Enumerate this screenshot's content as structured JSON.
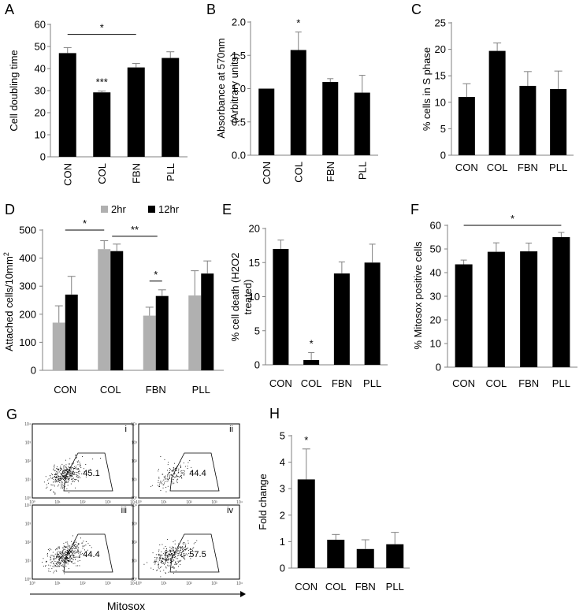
{
  "chart_data": [
    {
      "panel": "A",
      "type": "bar",
      "categories": [
        "CON",
        "COL",
        "FBN",
        "PLL"
      ],
      "values": [
        47,
        29.2,
        40.5,
        44.8
      ],
      "errors": [
        2.5,
        0.6,
        1.8,
        2.8
      ],
      "ylabel": "Cell doubling time",
      "ylim": [
        0,
        60
      ],
      "yticks": [
        "0",
        "10",
        "20",
        "30",
        "40",
        "50",
        "60"
      ],
      "xtick_rotation": -90,
      "annotations": [
        {
          "text": "***",
          "category": 1
        }
      ],
      "brackets": [
        {
          "text": "*",
          "from": 0,
          "to": 2
        }
      ]
    },
    {
      "panel": "B",
      "type": "bar",
      "categories": [
        "CON",
        "COL",
        "FBN",
        "PLL"
      ],
      "values": [
        1.0,
        1.58,
        1.1,
        0.94
      ],
      "errors": [
        0,
        0.27,
        0.05,
        0.26
      ],
      "ylabel": "Absorbance at 570nm",
      "ylabel2": "(Arbitrary units)",
      "ylim": [
        0,
        2.0
      ],
      "yticks": [
        "0.0",
        "0.5",
        "1.0",
        "1.5",
        "2.0"
      ],
      "xtick_rotation": -90,
      "annotations": [
        {
          "text": "*",
          "category": 1
        }
      ],
      "brackets": []
    },
    {
      "panel": "C",
      "type": "bar",
      "categories": [
        "CON",
        "COL",
        "FBN",
        "PLL"
      ],
      "values": [
        11,
        19.7,
        13.1,
        12.5
      ],
      "errors": [
        2.5,
        1.5,
        2.7,
        3.4
      ],
      "ylabel": "% cells in S phase",
      "ylim": [
        0,
        25
      ],
      "yticks": [
        "0",
        "5",
        "10",
        "15",
        "20",
        "25"
      ],
      "xtick_rotation": 0,
      "annotations": [],
      "brackets": []
    },
    {
      "panel": "D",
      "type": "bar",
      "categories": [
        "CON",
        "COL",
        "FBN",
        "PLL"
      ],
      "series": [
        {
          "name": "2hr",
          "color": "#b0b0b0",
          "values": [
            170,
            432,
            195,
            267
          ],
          "errors": [
            60,
            30,
            30,
            88
          ]
        },
        {
          "name": "12hr",
          "color": "#000000",
          "values": [
            270,
            425,
            265,
            345
          ],
          "errors": [
            65,
            25,
            22,
            45
          ]
        }
      ],
      "ylabel": "Attached cells/10mm",
      "ylabel_sup": "2",
      "ylim": [
        0,
        500
      ],
      "yticks": [
        "0",
        "100",
        "200",
        "300",
        "400",
        "500"
      ],
      "xtick_rotation": 0,
      "annotations": [],
      "brackets": [
        {
          "text": "*",
          "from": 0,
          "to": 1,
          "level": 500
        },
        {
          "text": "**",
          "from": 1,
          "to": 2,
          "level": 478
        },
        {
          "text": "*",
          "from": 2,
          "to": 2,
          "level": 318,
          "within": true
        }
      ]
    },
    {
      "panel": "E",
      "type": "bar",
      "categories": [
        "CON",
        "COL",
        "FBN",
        "PLL"
      ],
      "values": [
        17,
        0.7,
        13.4,
        15
      ],
      "errors": [
        1.3,
        1.1,
        1.7,
        2.7
      ],
      "ylabel": "% cell death (H2O2",
      "ylabel2": "treated)",
      "ylim": [
        0,
        20
      ],
      "yticks": [
        "0",
        "5",
        "10",
        "15",
        "20"
      ],
      "xtick_rotation": 0,
      "annotations": [
        {
          "text": "*",
          "category": 1
        }
      ],
      "brackets": []
    },
    {
      "panel": "F",
      "type": "bar",
      "categories": [
        "CON",
        "COL",
        "FBN",
        "PLL"
      ],
      "values": [
        43.5,
        48.8,
        49,
        55
      ],
      "errors": [
        1.8,
        3.8,
        3.5,
        2
      ],
      "ylabel": "% Mitosox positive cells",
      "ylim": [
        0,
        60
      ],
      "yticks": [
        "0",
        "10",
        "20",
        "30",
        "40",
        "50",
        "60"
      ],
      "xtick_rotation": 0,
      "annotations": [],
      "brackets": [
        {
          "text": "*",
          "from": 0,
          "to": 3
        }
      ]
    },
    {
      "panel": "H",
      "type": "bar",
      "categories": [
        "CON",
        "COL",
        "FBN",
        "PLL"
      ],
      "values": [
        3.35,
        1.07,
        0.72,
        0.9
      ],
      "errors": [
        1.15,
        0.2,
        0.35,
        0.45
      ],
      "ylabel": "Fold change",
      "ylim": [
        0,
        5
      ],
      "yticks": [
        "0",
        "1",
        "2",
        "3",
        "4",
        "5"
      ],
      "xtick_rotation": 0,
      "annotations": [
        {
          "text": "*",
          "category": 0
        }
      ],
      "brackets": []
    }
  ],
  "flow_panel": {
    "label": "G",
    "xlabel": "Mitosox",
    "tick_labels": [
      "10⁰",
      "10¹",
      "10²",
      "10³",
      "10⁴"
    ],
    "plots": [
      {
        "roman": "i",
        "percent": "45.1",
        "density": 0.9
      },
      {
        "roman": "ii",
        "percent": "44.4",
        "density": 0.35
      },
      {
        "roman": "iii",
        "percent": "44.4",
        "density": 1.0
      },
      {
        "roman": "iv",
        "percent": "57.5",
        "density": 0.8
      }
    ]
  }
}
